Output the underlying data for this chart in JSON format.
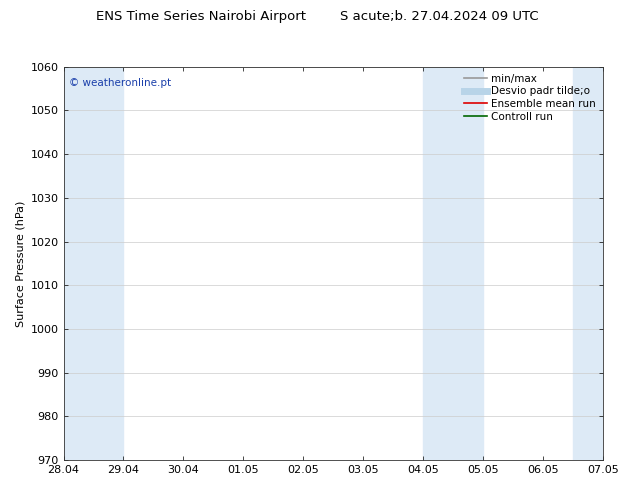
{
  "title": "ENS Time Series Nairobi Airport        S acute;b. 27.04.2024 09 UTC",
  "ylabel": "Surface Pressure (hPa)",
  "ylim": [
    970,
    1060
  ],
  "yticks": [
    970,
    980,
    990,
    1000,
    1010,
    1020,
    1030,
    1040,
    1050,
    1060
  ],
  "xtick_labels": [
    "28.04",
    "29.04",
    "30.04",
    "01.05",
    "02.05",
    "03.05",
    "04.05",
    "05.05",
    "06.05",
    "07.05"
  ],
  "xtick_positions": [
    0,
    1,
    2,
    3,
    4,
    5,
    6,
    7,
    8,
    9
  ],
  "xlim": [
    0,
    9
  ],
  "shade_bands": [
    {
      "x_start": 0,
      "x_end": 0.5,
      "color": "#ddeaf6"
    },
    {
      "x_start": 0.5,
      "x_end": 1.0,
      "color": "#ddeaf6"
    },
    {
      "x_start": 6,
      "x_end": 6.5,
      "color": "#ddeaf6"
    },
    {
      "x_start": 6.5,
      "x_end": 7.0,
      "color": "#ddeaf6"
    },
    {
      "x_start": 8.5,
      "x_end": 9.0,
      "color": "#ddeaf6"
    }
  ],
  "watermark": "© weatheronline.pt",
  "watermark_color": "#1a3faa",
  "legend_entries": [
    {
      "label": "min/max",
      "color": "#999999",
      "linestyle": "-",
      "linewidth": 1.2
    },
    {
      "label": "Desvio padr tilde;o",
      "color": "#b8d4e8",
      "linestyle": "-",
      "linewidth": 5
    },
    {
      "label": "Ensemble mean run",
      "color": "#dd0000",
      "linestyle": "-",
      "linewidth": 1.2
    },
    {
      "label": "Controll run",
      "color": "#006600",
      "linestyle": "-",
      "linewidth": 1.2
    }
  ],
  "background_color": "#ffffff",
  "plot_bg_color": "#ffffff",
  "grid_color": "#cccccc",
  "axis_color": "#333333",
  "title_fontsize": 9.5,
  "tick_fontsize": 8,
  "ylabel_fontsize": 8,
  "legend_fontsize": 7.5
}
